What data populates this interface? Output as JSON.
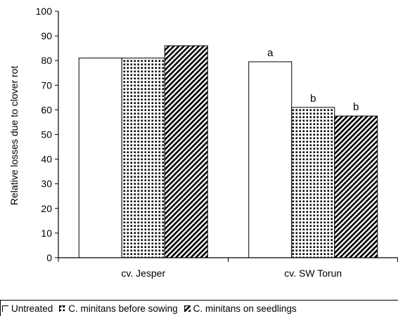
{
  "chart_data": {
    "type": "bar",
    "ylabel": "Relative losses due to clover rot",
    "xlabel": "",
    "ylim": [
      0,
      100
    ],
    "yticks": [
      0,
      10,
      20,
      30,
      40,
      50,
      60,
      70,
      80,
      90,
      100
    ],
    "grid": false,
    "legend_position": "bottom",
    "categories": [
      "cv. Jesper",
      "cv. SW Torun"
    ],
    "series": [
      {
        "name": "Untreated",
        "values": [
          81,
          79.5
        ],
        "labels": [
          "",
          "a"
        ],
        "fill": "white",
        "color": "#ffffff"
      },
      {
        "name": "C. minitans before sowing",
        "values": [
          81,
          61
        ],
        "labels": [
          "",
          "b"
        ],
        "fill": "dots",
        "color": "#000000"
      },
      {
        "name": "C. minitans on seedlings",
        "values": [
          86,
          57.5
        ],
        "labels": [
          "",
          "b"
        ],
        "fill": "diagonal",
        "color": "#000000"
      }
    ]
  }
}
